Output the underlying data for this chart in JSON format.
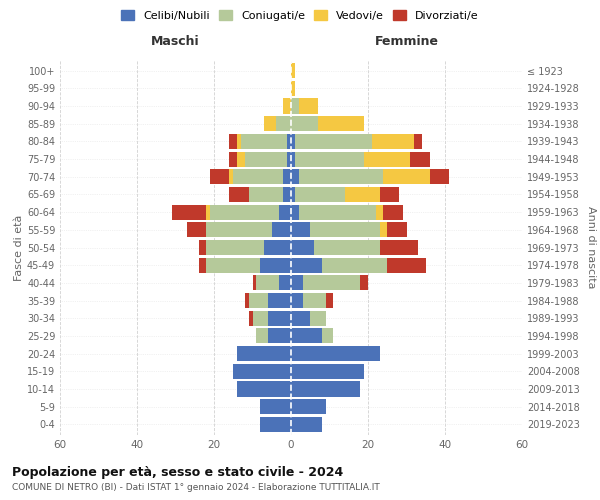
{
  "age_groups": [
    "0-4",
    "5-9",
    "10-14",
    "15-19",
    "20-24",
    "25-29",
    "30-34",
    "35-39",
    "40-44",
    "45-49",
    "50-54",
    "55-59",
    "60-64",
    "65-69",
    "70-74",
    "75-79",
    "80-84",
    "85-89",
    "90-94",
    "95-99",
    "100+"
  ],
  "birth_years": [
    "2019-2023",
    "2014-2018",
    "2009-2013",
    "2004-2008",
    "1999-2003",
    "1994-1998",
    "1989-1993",
    "1984-1988",
    "1979-1983",
    "1974-1978",
    "1969-1973",
    "1964-1968",
    "1959-1963",
    "1954-1958",
    "1949-1953",
    "1944-1948",
    "1939-1943",
    "1934-1938",
    "1929-1933",
    "1924-1928",
    "≤ 1923"
  ],
  "male": {
    "celibi": [
      8,
      8,
      14,
      15,
      14,
      6,
      6,
      6,
      3,
      8,
      7,
      5,
      3,
      2,
      2,
      1,
      1,
      0,
      0,
      0,
      0
    ],
    "coniugati": [
      0,
      0,
      0,
      0,
      0,
      3,
      4,
      5,
      6,
      14,
      15,
      17,
      18,
      9,
      13,
      11,
      12,
      4,
      0,
      0,
      0
    ],
    "vedovi": [
      0,
      0,
      0,
      0,
      0,
      0,
      0,
      0,
      0,
      0,
      0,
      0,
      1,
      0,
      1,
      2,
      1,
      3,
      2,
      0,
      0
    ],
    "divorziati": [
      0,
      0,
      0,
      0,
      0,
      0,
      1,
      1,
      1,
      2,
      2,
      5,
      9,
      5,
      5,
      2,
      2,
      0,
      0,
      0,
      0
    ]
  },
  "female": {
    "nubili": [
      8,
      9,
      18,
      19,
      23,
      8,
      5,
      3,
      3,
      8,
      6,
      5,
      2,
      1,
      2,
      1,
      1,
      0,
      0,
      0,
      0
    ],
    "coniugate": [
      0,
      0,
      0,
      0,
      0,
      3,
      4,
      6,
      15,
      17,
      17,
      18,
      20,
      13,
      22,
      18,
      20,
      7,
      2,
      0,
      0
    ],
    "vedove": [
      0,
      0,
      0,
      0,
      0,
      0,
      0,
      0,
      0,
      0,
      0,
      2,
      2,
      9,
      12,
      12,
      11,
      12,
      5,
      1,
      1
    ],
    "divorziate": [
      0,
      0,
      0,
      0,
      0,
      0,
      0,
      2,
      2,
      10,
      10,
      5,
      5,
      5,
      5,
      5,
      2,
      0,
      0,
      0,
      0
    ]
  },
  "colors": {
    "celibi": "#4B72B8",
    "coniugati": "#B5C99A",
    "vedovi": "#F5C842",
    "divorziati": "#C0392B"
  },
  "xlim": 60,
  "title_main": "Popolazione per età, sesso e stato civile - 2024",
  "title_sub": "COMUNE DI NETRO (BI) - Dati ISTAT 1° gennaio 2024 - Elaborazione TUTTITALIA.IT",
  "ylabel_left": "Fasce di età",
  "ylabel_right": "Anni di nascita",
  "xlabel_left": "Maschi",
  "xlabel_right": "Femmine",
  "legend_labels": [
    "Celibi/Nubili",
    "Coniugati/e",
    "Vedovi/e",
    "Divorziati/e"
  ],
  "bg_color": "#FFFFFF",
  "grid_color": "#CCCCCC"
}
